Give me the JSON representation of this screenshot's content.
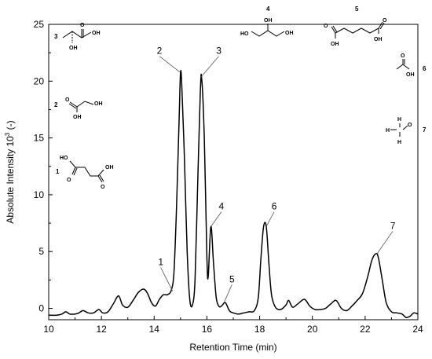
{
  "chart_data": {
    "type": "line",
    "xlabel": "Retention Time (min)",
    "ylabel_prefix": "Absolute Intensity 10",
    "ylabel_exp": "3",
    "ylabel_suffix": " (-)",
    "xlim": [
      10,
      24
    ],
    "ylim": [
      -1,
      25
    ],
    "x_ticks": [
      10,
      12,
      14,
      16,
      18,
      20,
      22,
      24
    ],
    "y_ticks": [
      0,
      5,
      10,
      15,
      20,
      25
    ],
    "grid": false,
    "line_color": "#000000",
    "series": [
      {
        "x": [
          10.0,
          10.3,
          10.5,
          10.65,
          10.8,
          11.0,
          11.15,
          11.3,
          11.5,
          11.7,
          11.9,
          12.05,
          12.25,
          12.45,
          12.65,
          12.8,
          13.0,
          13.2,
          13.4,
          13.6,
          13.75,
          13.9,
          14.05,
          14.2,
          14.35,
          14.5,
          14.65,
          14.75,
          14.85,
          14.95,
          15.0,
          15.05,
          15.15,
          15.25,
          15.35,
          15.45,
          15.55,
          15.65,
          15.75,
          15.8,
          15.9,
          16.0,
          16.05,
          16.15,
          16.25,
          16.35,
          16.45,
          16.55,
          16.7,
          16.85,
          17.0,
          17.2,
          17.4,
          17.6,
          17.8,
          17.95,
          18.05,
          18.15,
          18.25,
          18.35,
          18.45,
          18.6,
          18.8,
          19.0,
          19.1,
          19.25,
          19.45,
          19.7,
          19.9,
          20.1,
          20.3,
          20.5,
          20.7,
          20.9,
          21.1,
          21.3,
          21.5,
          21.7,
          21.9,
          22.1,
          22.25,
          22.4,
          22.5,
          22.65,
          22.8,
          23.0,
          23.2,
          23.4,
          23.55,
          23.7,
          23.85,
          24.0
        ],
        "y": [
          -0.6,
          -0.6,
          -0.5,
          -0.3,
          -0.5,
          -0.5,
          -0.4,
          -0.2,
          -0.4,
          -0.4,
          -0.1,
          -0.4,
          -0.3,
          0.4,
          1.1,
          0.3,
          0.1,
          0.7,
          1.4,
          1.7,
          1.3,
          0.5,
          0.2,
          0.8,
          1.2,
          1.2,
          1.6,
          3.2,
          9.0,
          17.0,
          20.8,
          19.5,
          13.0,
          5.0,
          0.8,
          0.3,
          2.5,
          11.0,
          19.0,
          20.3,
          15.0,
          4.5,
          2.8,
          7.2,
          4.0,
          1.0,
          0.2,
          0.2,
          0.5,
          -0.2,
          -0.4,
          -0.5,
          -0.4,
          -0.3,
          -0.2,
          1.0,
          4.5,
          7.2,
          7.2,
          4.0,
          1.2,
          0.1,
          -0.1,
          0.3,
          0.7,
          0.1,
          0.4,
          0.8,
          0.2,
          -0.1,
          -0.1,
          0.0,
          0.4,
          0.7,
          0.0,
          -0.2,
          0.2,
          0.7,
          1.3,
          2.8,
          4.2,
          4.8,
          4.5,
          2.5,
          0.5,
          -0.3,
          -0.4,
          -0.5,
          -0.8,
          -0.7,
          -0.4,
          -0.5
        ]
      }
    ],
    "peak_labels": [
      {
        "label": "1",
        "x": 14.7,
        "y": 1.5,
        "tx": 14.25,
        "ty": 3.8
      },
      {
        "label": "2",
        "x": 14.97,
        "y": 20.8,
        "tx": 14.2,
        "ty": 22.4
      },
      {
        "label": "3",
        "x": 15.75,
        "y": 20.3,
        "tx": 16.45,
        "ty": 22.4
      },
      {
        "label": "4",
        "x": 16.15,
        "y": 7.2,
        "tx": 16.55,
        "ty": 8.7
      },
      {
        "label": "5",
        "x": 16.65,
        "y": 0.5,
        "tx": 16.95,
        "ty": 2.3
      },
      {
        "label": "6",
        "x": 18.25,
        "y": 7.2,
        "tx": 18.55,
        "ty": 8.7
      },
      {
        "label": "7",
        "x": 22.45,
        "y": 4.8,
        "tx": 23.05,
        "ty": 7.0
      }
    ]
  },
  "structures": [
    {
      "num": "1",
      "atoms": [
        "HO",
        "O",
        "O",
        "OH"
      ]
    },
    {
      "num": "2",
      "atoms": [
        "O",
        "OH",
        "OH"
      ]
    },
    {
      "num": "3",
      "atoms": [
        "O",
        "OH",
        "OH"
      ]
    },
    {
      "num": "4",
      "atoms": [
        "OH",
        "HO",
        "OH"
      ]
    },
    {
      "num": "5",
      "atoms": [
        "O",
        "O",
        "OH",
        "OH"
      ]
    },
    {
      "num": "6",
      "atoms": [
        "O",
        "OH"
      ]
    },
    {
      "num": "7",
      "atoms": [
        "H",
        "H",
        "O",
        "H"
      ]
    }
  ]
}
